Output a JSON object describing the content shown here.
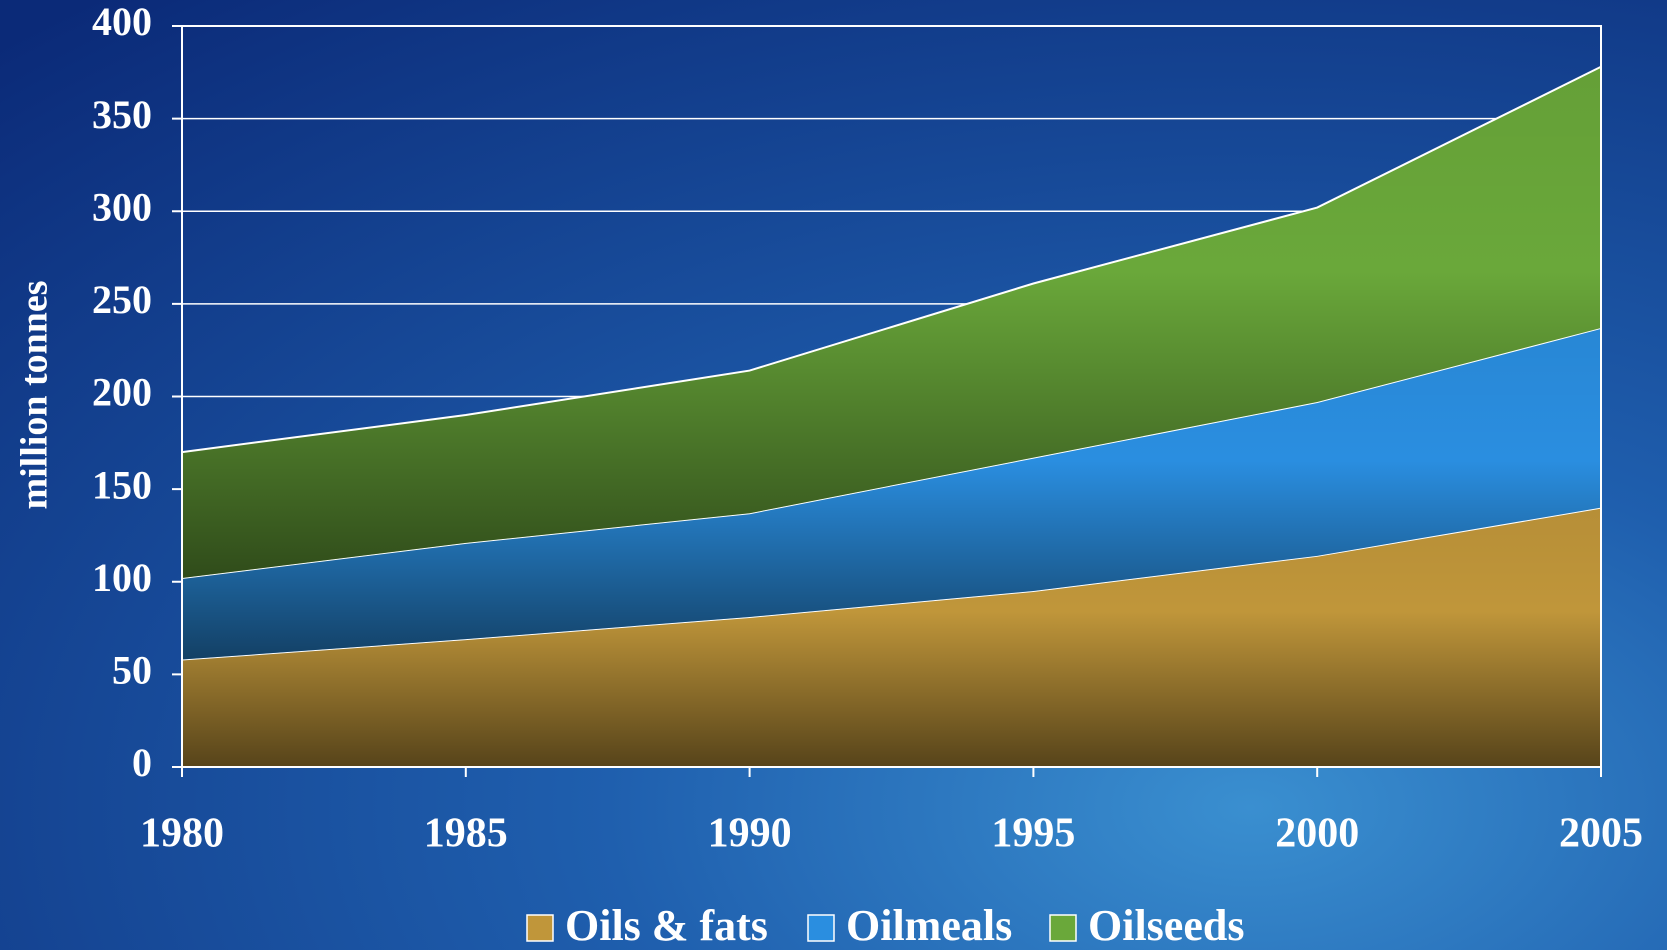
{
  "chart_data": {
    "type": "stacked-area",
    "y_label": "million tonnes",
    "x": [
      1980,
      1985,
      1990,
      1995,
      2000,
      2005
    ],
    "series": [
      {
        "name": "Oils & fats",
        "color": "#c0963a",
        "values": [
          58,
          69,
          81,
          95,
          114,
          140
        ]
      },
      {
        "name": "Oilmeals",
        "color": "#2a8ee0",
        "values": [
          44,
          52,
          56,
          72,
          83,
          97
        ]
      },
      {
        "name": "Oilseeds",
        "color": "#6aa83a",
        "values": [
          68,
          69,
          77,
          94,
          105,
          141
        ]
      }
    ],
    "xlim": [
      1980,
      2005
    ],
    "xticks": [
      1980,
      1985,
      1990,
      1995,
      2000,
      2005
    ],
    "ylim": [
      0,
      400
    ],
    "yticks": [
      0,
      50,
      100,
      150,
      200,
      250,
      300,
      350,
      400
    ],
    "grid": true,
    "legend": "bottom"
  }
}
